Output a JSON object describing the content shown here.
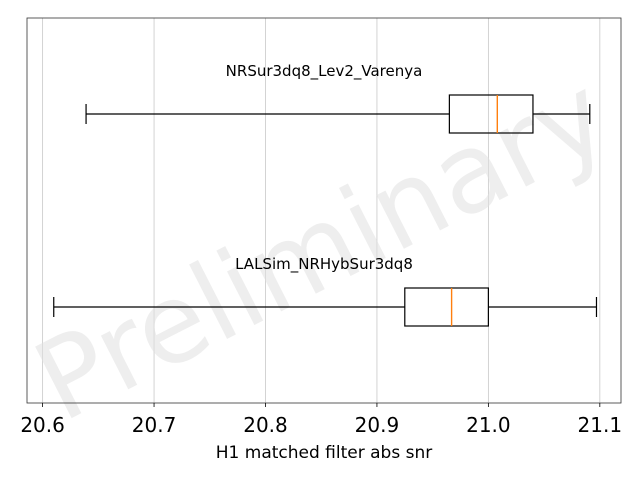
{
  "chart_data": {
    "type": "box",
    "orientation": "horizontal",
    "xlabel": "H1 matched filter abs snr",
    "xlim": [
      20.586,
      21.119
    ],
    "xticks": [
      20.6,
      20.7,
      20.8,
      20.9,
      21.0,
      21.1
    ],
    "xtick_labels": [
      "20.6",
      "20.7",
      "20.8",
      "20.9",
      "21.0",
      "21.1"
    ],
    "grid": "vertical",
    "watermark": "Preliminary",
    "series": [
      {
        "name": "NRSur3dq8_Lev2_Varenya",
        "whisker_low": 20.639,
        "q1": 20.965,
        "median": 21.008,
        "q3": 21.04,
        "whisker_high": 21.091
      },
      {
        "name": "LALSim_NRHybSur3dq8",
        "whisker_low": 20.61,
        "q1": 20.925,
        "median": 20.967,
        "q3": 21.0,
        "whisker_high": 21.097
      }
    ],
    "colors": {
      "box": "#000000",
      "median": "#ff7f0e",
      "grid": "#b0b0b0",
      "watermark": "#d9d9d9"
    }
  }
}
